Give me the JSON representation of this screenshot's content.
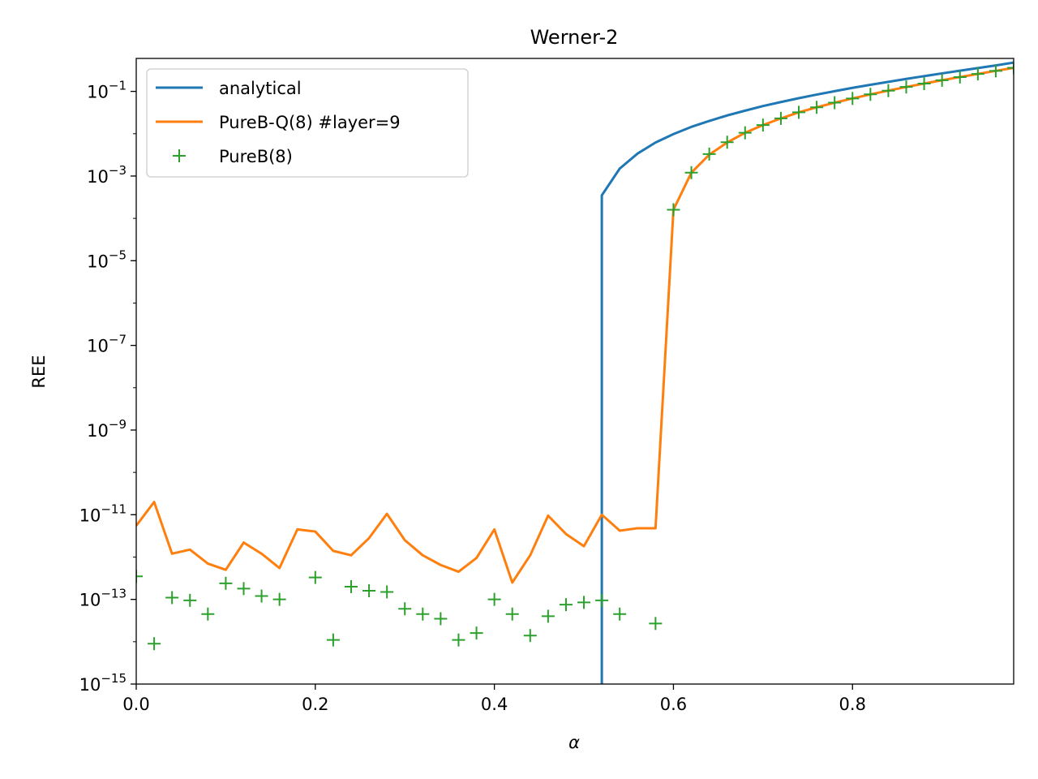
{
  "chart_data": {
    "type": "line",
    "title": "Werner-2",
    "xlabel": "α",
    "ylabel": "REE",
    "xlim": [
      0.0,
      0.98
    ],
    "ylim": [
      1e-15,
      0.6
    ],
    "yscale": "log",
    "grid": false,
    "legend_position": "upper-left",
    "x_ticks": [
      "0.0",
      "0.2",
      "0.4",
      "0.6",
      "0.8"
    ],
    "y_ticks": [
      {
        "value": 0.1,
        "base": "10",
        "exp": "−1"
      },
      {
        "value": 0.001,
        "base": "10",
        "exp": "−3"
      },
      {
        "value": 1e-05,
        "base": "10",
        "exp": "−5"
      },
      {
        "value": 1e-07,
        "base": "10",
        "exp": "−7"
      },
      {
        "value": 1e-09,
        "base": "10",
        "exp": "−9"
      },
      {
        "value": 1e-11,
        "base": "10",
        "exp": "−11"
      },
      {
        "value": 1e-13,
        "base": "10",
        "exp": "−13"
      },
      {
        "value": 1e-15,
        "base": "10",
        "exp": "−15"
      }
    ],
    "series": [
      {
        "name": "analytical",
        "style": "line",
        "color": "#1f77b4",
        "points": [
          [
            0.52,
            1e-15
          ],
          [
            0.52,
            0.00035
          ],
          [
            0.54,
            0.0015
          ],
          [
            0.56,
            0.0034
          ],
          [
            0.58,
            0.0062
          ],
          [
            0.6,
            0.0098
          ],
          [
            0.62,
            0.0145
          ],
          [
            0.64,
            0.02
          ],
          [
            0.66,
            0.027
          ],
          [
            0.68,
            0.035
          ],
          [
            0.7,
            0.045
          ],
          [
            0.72,
            0.056
          ],
          [
            0.74,
            0.069
          ],
          [
            0.76,
            0.084
          ],
          [
            0.78,
            0.101
          ],
          [
            0.8,
            0.121
          ],
          [
            0.82,
            0.143
          ],
          [
            0.84,
            0.168
          ],
          [
            0.86,
            0.197
          ],
          [
            0.88,
            0.229
          ],
          [
            0.9,
            0.266
          ],
          [
            0.92,
            0.308
          ],
          [
            0.94,
            0.356
          ],
          [
            0.96,
            0.41
          ],
          [
            0.98,
            0.48
          ]
        ]
      },
      {
        "name": "PureB-Q(8) #layer=9",
        "style": "line",
        "color": "#ff7f0e",
        "points": [
          [
            0.0,
            5.5e-12
          ],
          [
            0.02,
            2e-11
          ],
          [
            0.04,
            1.2e-12
          ],
          [
            0.06,
            1.5e-12
          ],
          [
            0.08,
            7e-13
          ],
          [
            0.1,
            5e-13
          ],
          [
            0.12,
            2.2e-12
          ],
          [
            0.14,
            1.2e-12
          ],
          [
            0.16,
            5.5e-13
          ],
          [
            0.18,
            4.5e-12
          ],
          [
            0.2,
            4e-12
          ],
          [
            0.22,
            1.4e-12
          ],
          [
            0.24,
            1.1e-12
          ],
          [
            0.26,
            2.8e-12
          ],
          [
            0.28,
            1.05e-11
          ],
          [
            0.3,
            2.5e-12
          ],
          [
            0.32,
            1.1e-12
          ],
          [
            0.34,
            6.5e-13
          ],
          [
            0.36,
            4.5e-13
          ],
          [
            0.38,
            9.5e-13
          ],
          [
            0.4,
            4.5e-12
          ],
          [
            0.42,
            2.5e-13
          ],
          [
            0.44,
            1.1e-12
          ],
          [
            0.46,
            9.5e-12
          ],
          [
            0.48,
            3.5e-12
          ],
          [
            0.5,
            1.8e-12
          ],
          [
            0.52,
            1e-11
          ],
          [
            0.54,
            4.2e-12
          ],
          [
            0.56,
            4.8e-12
          ],
          [
            0.58,
            4.8e-12
          ],
          [
            0.6,
            0.00016
          ],
          [
            0.62,
            0.0012
          ],
          [
            0.64,
            0.0032
          ],
          [
            0.66,
            0.0062
          ],
          [
            0.68,
            0.0105
          ],
          [
            0.7,
            0.016
          ],
          [
            0.72,
            0.023
          ],
          [
            0.74,
            0.032
          ],
          [
            0.76,
            0.042
          ],
          [
            0.78,
            0.054
          ],
          [
            0.8,
            0.068
          ],
          [
            0.82,
            0.085
          ],
          [
            0.84,
            0.104
          ],
          [
            0.86,
            0.127
          ],
          [
            0.88,
            0.153
          ],
          [
            0.9,
            0.183
          ],
          [
            0.92,
            0.218
          ],
          [
            0.94,
            0.258
          ],
          [
            0.96,
            0.305
          ],
          [
            0.98,
            0.36
          ]
        ]
      },
      {
        "name": "PureB(8)",
        "style": "marker",
        "marker": "+",
        "color": "#2ca02c",
        "points": [
          [
            0.0,
            3.5e-13
          ],
          [
            0.02,
            9e-15
          ],
          [
            0.04,
            1.1e-13
          ],
          [
            0.06,
            9.5e-14
          ],
          [
            0.08,
            4.5e-14
          ],
          [
            0.1,
            2.4e-13
          ],
          [
            0.12,
            1.8e-13
          ],
          [
            0.14,
            1.2e-13
          ],
          [
            0.16,
            1e-13
          ],
          [
            0.2,
            3.3e-13
          ],
          [
            0.22,
            1.1e-14
          ],
          [
            0.24,
            2e-13
          ],
          [
            0.26,
            1.6e-13
          ],
          [
            0.28,
            1.5e-13
          ],
          [
            0.3,
            6e-14
          ],
          [
            0.32,
            4.5e-14
          ],
          [
            0.34,
            3.5e-14
          ],
          [
            0.36,
            1.1e-14
          ],
          [
            0.38,
            1.6e-14
          ],
          [
            0.4,
            1e-13
          ],
          [
            0.42,
            4.5e-14
          ],
          [
            0.44,
            1.4e-14
          ],
          [
            0.46,
            4e-14
          ],
          [
            0.48,
            7.5e-14
          ],
          [
            0.5,
            8.5e-14
          ],
          [
            0.52,
            9.5e-14
          ],
          [
            0.54,
            4.5e-14
          ],
          [
            0.58,
            2.7e-14
          ],
          [
            0.6,
            0.00016
          ],
          [
            0.62,
            0.0012
          ],
          [
            0.64,
            0.0033
          ],
          [
            0.66,
            0.0063
          ],
          [
            0.68,
            0.0105
          ],
          [
            0.7,
            0.016
          ],
          [
            0.72,
            0.023
          ],
          [
            0.74,
            0.032
          ],
          [
            0.76,
            0.042
          ],
          [
            0.78,
            0.054
          ],
          [
            0.8,
            0.068
          ],
          [
            0.82,
            0.085
          ],
          [
            0.84,
            0.104
          ],
          [
            0.86,
            0.127
          ],
          [
            0.88,
            0.153
          ],
          [
            0.9,
            0.183
          ],
          [
            0.92,
            0.218
          ],
          [
            0.94,
            0.258
          ],
          [
            0.96,
            0.305
          ],
          [
            0.98,
            0.36
          ]
        ]
      }
    ]
  }
}
